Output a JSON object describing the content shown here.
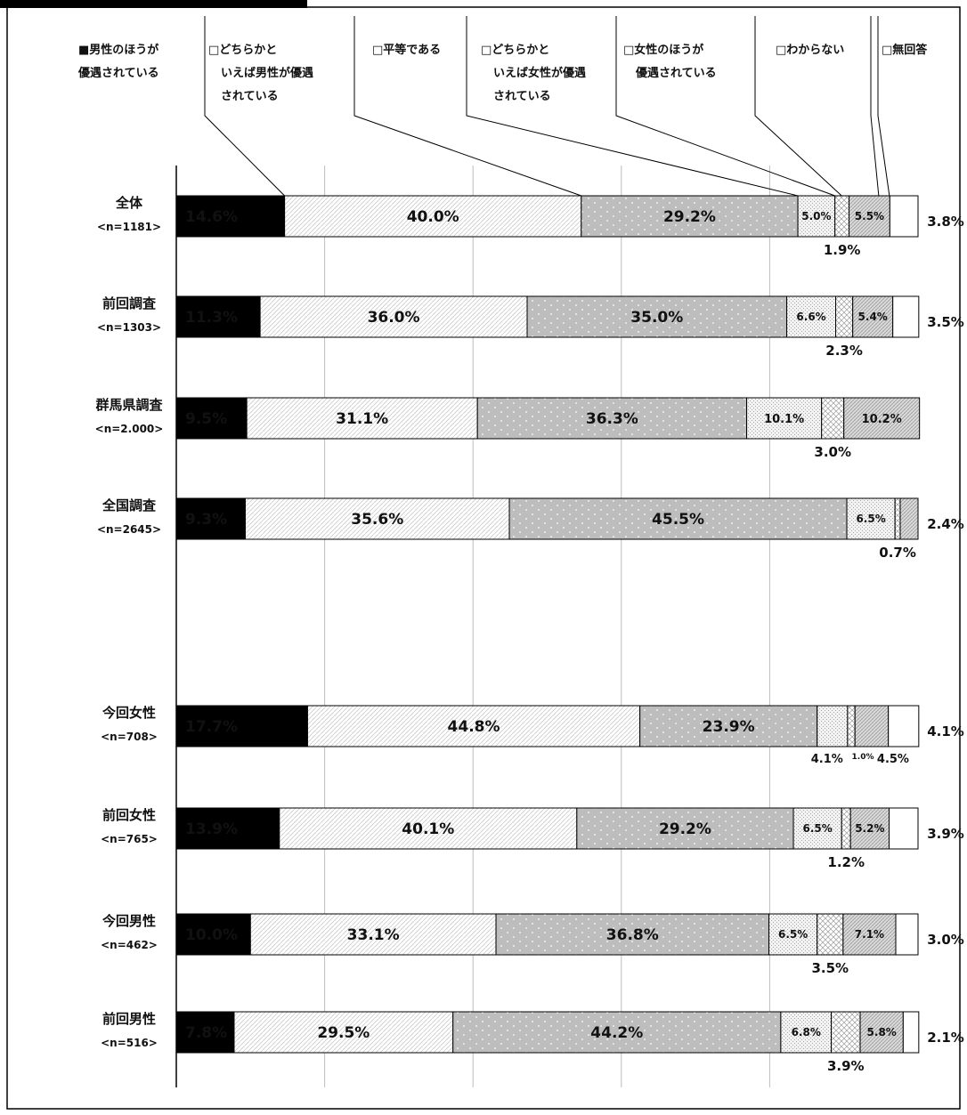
{
  "chart_data": {
    "type": "bar",
    "orientation": "horizontal",
    "stacked": true,
    "unit": "%",
    "xlim": [
      0,
      100
    ],
    "grid": true,
    "legend_position": "top",
    "legend": [
      {
        "key": "a",
        "lines": [
          "■男性のほうが",
          "優遇されている"
        ]
      },
      {
        "key": "b",
        "lines": [
          "□どちらかと",
          "いえば男性が優遇",
          "されている"
        ]
      },
      {
        "key": "c",
        "lines": [
          "□平等である"
        ]
      },
      {
        "key": "d",
        "lines": [
          "□どちらかと",
          "いえば女性が優遇",
          "されている"
        ]
      },
      {
        "key": "e",
        "lines": [
          "□女性のほうが",
          "優遇されている"
        ]
      },
      {
        "key": "f",
        "lines": [
          "□わからない"
        ]
      },
      {
        "key": "g",
        "lines": [
          "□無回答"
        ]
      }
    ],
    "rows": [
      {
        "name": "全体",
        "n": "<n=1181>",
        "values": [
          14.6,
          40.0,
          29.2,
          5.0,
          1.9,
          5.5,
          3.8
        ],
        "labels": [
          "14.6%",
          "40.0%",
          "29.2%",
          "5.0%",
          "1.9%",
          "5.5%",
          "3.8%"
        ]
      },
      {
        "name": "前回調査",
        "n": "<n=1303>",
        "values": [
          11.3,
          36.0,
          35.0,
          6.6,
          2.3,
          5.4,
          3.5
        ],
        "labels": [
          "11.3%",
          "36.0%",
          "35.0%",
          "6.6%",
          "2.3%",
          "5.4%",
          "3.5%"
        ]
      },
      {
        "name": "群馬県調査",
        "n": "<n=2.000>",
        "values": [
          9.5,
          31.1,
          36.3,
          10.1,
          3.0,
          10.2,
          0
        ],
        "labels": [
          "9.5%",
          "31.1%",
          "36.3%",
          "10.1%",
          "3.0%",
          "10.2%",
          ""
        ]
      },
      {
        "name": "全国調査",
        "n": "<n=2645>",
        "values": [
          9.3,
          35.6,
          45.5,
          6.5,
          0.7,
          2.4,
          0
        ],
        "labels": [
          "9.3%",
          "35.6%",
          "45.5%",
          "6.5%",
          "0.7%",
          "2.4%",
          ""
        ]
      },
      {
        "name": "今回女性",
        "n": "<n=708>",
        "values": [
          17.7,
          44.8,
          23.9,
          4.1,
          1.0,
          4.5,
          4.1
        ],
        "labels": [
          "17.7%",
          "44.8%",
          "23.9%",
          "4.1%",
          "1.0%",
          "4.5%",
          "4.1%"
        ]
      },
      {
        "name": "前回女性",
        "n": "<n=765>",
        "values": [
          13.9,
          40.1,
          29.2,
          6.5,
          1.2,
          5.2,
          3.9
        ],
        "labels": [
          "13.9%",
          "40.1%",
          "29.2%",
          "6.5%",
          "1.2%",
          "5.2%",
          "3.9%"
        ]
      },
      {
        "name": "今回男性",
        "n": "<n=462>",
        "values": [
          10.0,
          33.1,
          36.8,
          6.5,
          3.5,
          7.1,
          3.0
        ],
        "labels": [
          "10.0%",
          "33.1%",
          "36.8%",
          "6.5%",
          "3.5%",
          "7.1%",
          "3.0%"
        ]
      },
      {
        "name": "前回男性",
        "n": "<n=516>",
        "values": [
          7.8,
          29.5,
          44.2,
          6.8,
          3.9,
          5.8,
          2.1
        ],
        "labels": [
          "7.8%",
          "29.5%",
          "44.2%",
          "6.8%",
          "3.9%",
          "5.8%",
          "2.1%"
        ]
      }
    ]
  }
}
